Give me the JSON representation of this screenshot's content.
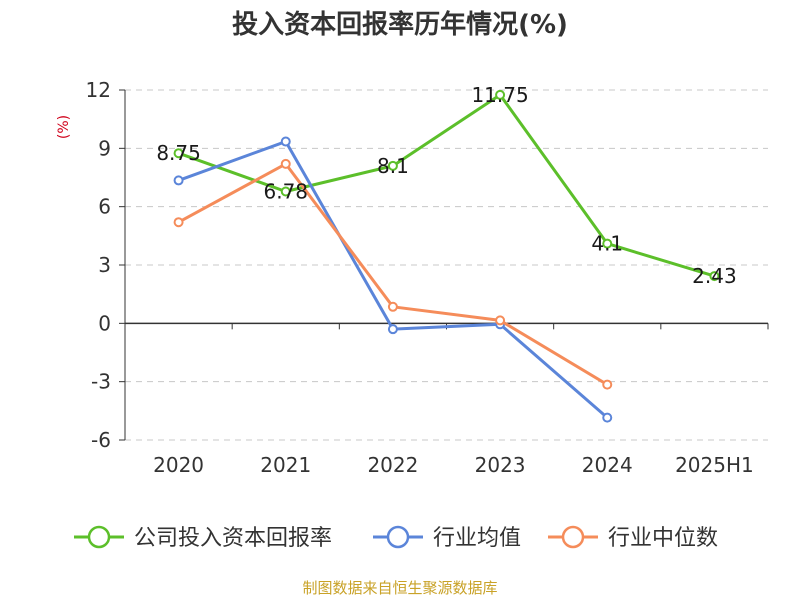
{
  "chart_data": {
    "type": "line",
    "title": "投入资本回报率历年情况(%)",
    "unit_label": "(%)",
    "categories": [
      "2020",
      "2021",
      "2022",
      "2023",
      "2024",
      "2025H1"
    ],
    "ylim": [
      -6,
      12
    ],
    "yticks": [
      "-6",
      "-3",
      "0",
      "3",
      "6",
      "9",
      "12"
    ],
    "ytick_values": [
      -6,
      -3,
      0,
      3,
      6,
      9,
      12
    ],
    "grid": true,
    "legend_position": "bottom",
    "series": [
      {
        "name": "公司投入资本回报率",
        "color": "#5cbf2a",
        "values": [
          8.75,
          6.78,
          8.1,
          11.75,
          4.1,
          2.43
        ],
        "labels": [
          "8.75",
          "6.78",
          "8.1",
          "11.75",
          "4.1",
          "2.43"
        ]
      },
      {
        "name": "行业均值",
        "color": "#5b85d9",
        "values": [
          7.35,
          9.35,
          -0.3,
          -0.05,
          -4.85,
          null
        ]
      },
      {
        "name": "行业中位数",
        "color": "#f58c5a",
        "values": [
          5.2,
          8.2,
          0.85,
          0.15,
          -3.15,
          null
        ]
      }
    ]
  },
  "footer": {
    "source": "制图数据来自恒生聚源数据库"
  }
}
